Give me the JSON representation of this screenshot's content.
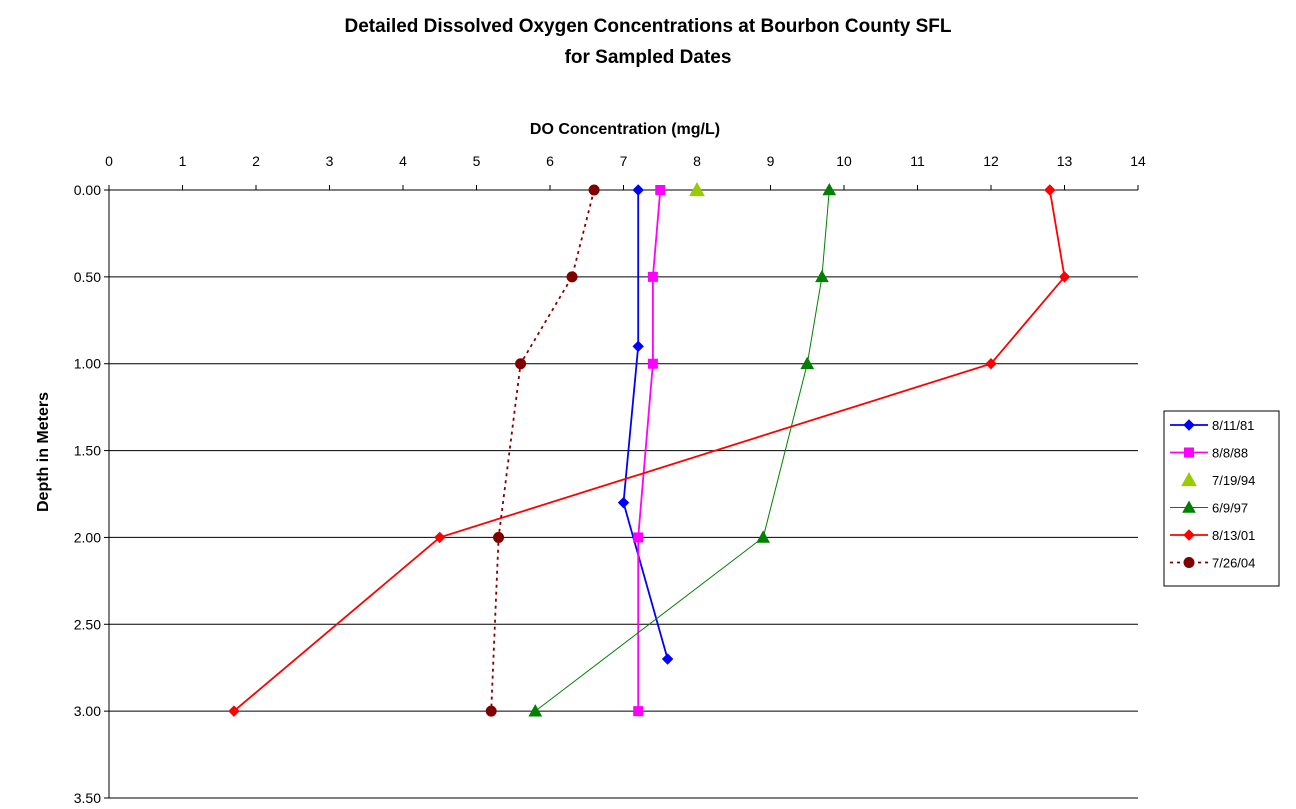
{
  "chart_data": {
    "type": "line",
    "title": {
      "line1": "Detailed Dissolved Oxygen Concentrations at Bourbon County SFL",
      "line2": "for Sampled Dates"
    },
    "xlabel": "DO Concentration (mg/L)",
    "ylabel": "Depth in Meters",
    "xlim": [
      0,
      14
    ],
    "ylim": [
      0,
      3.5
    ],
    "y_inverted": true,
    "x_axis_position": "top",
    "x_ticks": [
      "0",
      "1",
      "2",
      "3",
      "4",
      "5",
      "6",
      "7",
      "8",
      "9",
      "10",
      "11",
      "12",
      "13",
      "14"
    ],
    "y_ticks": [
      "0.00",
      "0.50",
      "1.00",
      "1.50",
      "2.00",
      "2.50",
      "3.00",
      "3.50"
    ],
    "grid": "horizontal",
    "legend_position": "right",
    "series": [
      {
        "name": "8/11/81",
        "color": "#0000ff",
        "marker": "diamond",
        "line": "solid",
        "points": [
          [
            7.2,
            0.0
          ],
          [
            7.2,
            0.9
          ],
          [
            7.0,
            1.8
          ],
          [
            7.6,
            2.7
          ]
        ]
      },
      {
        "name": "8/8/88",
        "color": "#ff00ff",
        "marker": "square",
        "line": "solid",
        "points": [
          [
            7.5,
            0.0
          ],
          [
            7.4,
            0.5
          ],
          [
            7.4,
            1.0
          ],
          [
            7.2,
            2.0
          ],
          [
            7.2,
            3.0
          ]
        ]
      },
      {
        "name": "7/19/94",
        "color": "#99cc00",
        "marker": "triangle",
        "line": "none",
        "points": [
          [
            8.0,
            0.0
          ]
        ]
      },
      {
        "name": "6/9/97",
        "color": "#008000",
        "marker": "triangle",
        "line": "solid-thin",
        "points": [
          [
            9.8,
            0.0
          ],
          [
            9.7,
            0.5
          ],
          [
            9.5,
            1.0
          ],
          [
            8.9,
            2.0
          ],
          [
            5.8,
            3.0
          ]
        ]
      },
      {
        "name": "8/13/01",
        "color": "#ff0000",
        "marker": "diamond",
        "line": "solid",
        "points": [
          [
            12.8,
            0.0
          ],
          [
            13.0,
            0.5
          ],
          [
            12.0,
            1.0
          ],
          [
            4.5,
            2.0
          ],
          [
            1.7,
            3.0
          ]
        ]
      },
      {
        "name": "7/26/04",
        "color": "#800000",
        "marker": "circle",
        "line": "dotted",
        "points": [
          [
            6.6,
            0.0
          ],
          [
            6.3,
            0.5
          ],
          [
            5.6,
            1.0
          ],
          [
            5.3,
            2.0
          ],
          [
            5.2,
            3.0
          ]
        ]
      }
    ]
  }
}
